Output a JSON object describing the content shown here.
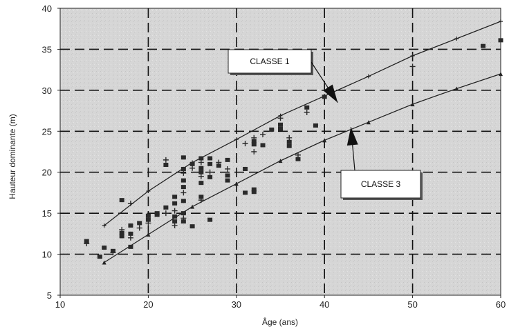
{
  "chart_data": {
    "type": "scatter",
    "title": "",
    "xlabel": "Âge (ans)",
    "ylabel": "Hauteur dominante (m)",
    "xlim": [
      10,
      60
    ],
    "ylim": [
      5,
      40
    ],
    "x_ticks": [
      "10",
      "20",
      "30",
      "40",
      "50",
      "60"
    ],
    "y_ticks": [
      "5",
      "10",
      "15",
      "20",
      "25",
      "30",
      "35",
      "40"
    ],
    "grid": true,
    "grid_style": "dashed",
    "series": [
      {
        "kind": "points",
        "points": [
          [
            13,
            11.6
          ],
          [
            13,
            11.3
          ],
          [
            14.5,
            9.7
          ],
          [
            15,
            10.8
          ],
          [
            16,
            10.2
          ],
          [
            16,
            10.4
          ],
          [
            17,
            16.6
          ],
          [
            17,
            13.0
          ],
          [
            17,
            12.6
          ],
          [
            17,
            12.2
          ],
          [
            18,
            16.2
          ],
          [
            18,
            13.5
          ],
          [
            18,
            12.5
          ],
          [
            18,
            12.0
          ],
          [
            18,
            10.9
          ],
          [
            19,
            13.8
          ],
          [
            19,
            13.2
          ],
          [
            20,
            14.7
          ],
          [
            20,
            14.2
          ],
          [
            20,
            13.8
          ],
          [
            21,
            15.0
          ],
          [
            21,
            14.8
          ],
          [
            22,
            21.5
          ],
          [
            22,
            20.9
          ],
          [
            22,
            15.7
          ],
          [
            22,
            15.0
          ],
          [
            23,
            17.0
          ],
          [
            23,
            16.2
          ],
          [
            23,
            15.3
          ],
          [
            23,
            14.6
          ],
          [
            23,
            14.0
          ],
          [
            23,
            13.5
          ],
          [
            24,
            21.8
          ],
          [
            24,
            20.4
          ],
          [
            24,
            19.9
          ],
          [
            24,
            19.0
          ],
          [
            24,
            18.2
          ],
          [
            24,
            17.5
          ],
          [
            24,
            16.5
          ],
          [
            24,
            15.0
          ],
          [
            24,
            14.4
          ],
          [
            24,
            14.0
          ],
          [
            25,
            21.0
          ],
          [
            25,
            20.5
          ],
          [
            25,
            13.4
          ],
          [
            26,
            21.7
          ],
          [
            26,
            21.2
          ],
          [
            26,
            20.5
          ],
          [
            26,
            20.0
          ],
          [
            26,
            19.5
          ],
          [
            26,
            18.7
          ],
          [
            26,
            17.0
          ],
          [
            26,
            16.6
          ],
          [
            27,
            21.7
          ],
          [
            27,
            21.0
          ],
          [
            27,
            20.0
          ],
          [
            27,
            19.4
          ],
          [
            27,
            14.2
          ],
          [
            28,
            21.2
          ],
          [
            28,
            20.8
          ],
          [
            29,
            21.5
          ],
          [
            29,
            20.4
          ],
          [
            29,
            19.6
          ],
          [
            29,
            19.0
          ],
          [
            31,
            23.5
          ],
          [
            31,
            20.4
          ],
          [
            31,
            17.5
          ],
          [
            32,
            24.2
          ],
          [
            32,
            23.8
          ],
          [
            32,
            23.4
          ],
          [
            32,
            22.5
          ],
          [
            32,
            17.9
          ],
          [
            32,
            17.6
          ],
          [
            33,
            24.6
          ],
          [
            33,
            23.3
          ],
          [
            34,
            25.2
          ],
          [
            35,
            26.6
          ],
          [
            35,
            25.8
          ],
          [
            35,
            25.3
          ],
          [
            36,
            24.2
          ],
          [
            36,
            23.7
          ],
          [
            36,
            23.2
          ],
          [
            37,
            22.1
          ],
          [
            37,
            21.6
          ],
          [
            38,
            27.9
          ],
          [
            38,
            27.3
          ],
          [
            39,
            25.7
          ],
          [
            40,
            29.2
          ],
          [
            50,
            32.9
          ],
          [
            58,
            35.4
          ],
          [
            60,
            36.1
          ]
        ]
      },
      {
        "kind": "curve",
        "name": "CLASSE 1",
        "points": [
          [
            15,
            13.5
          ],
          [
            20,
            17.7
          ],
          [
            25,
            21.2
          ],
          [
            30,
            24.0
          ],
          [
            35,
            26.9
          ],
          [
            40,
            29.3
          ],
          [
            45,
            31.7
          ],
          [
            50,
            34.2
          ],
          [
            55,
            36.3
          ],
          [
            60,
            38.4
          ]
        ]
      },
      {
        "kind": "curve",
        "name": "CLASSE 3",
        "points": [
          [
            15,
            9.0
          ],
          [
            20,
            12.4
          ],
          [
            25,
            15.8
          ],
          [
            30,
            18.6
          ],
          [
            35,
            21.4
          ],
          [
            40,
            23.9
          ],
          [
            45,
            26.1
          ],
          [
            50,
            28.3
          ],
          [
            55,
            30.2
          ],
          [
            60,
            32.0
          ]
        ]
      }
    ],
    "annotations": [
      {
        "label": "CLASSE 1",
        "arrow_tip": [
          41.5,
          28.5
        ]
      },
      {
        "label": "CLASSE 3",
        "arrow_tip": [
          43,
          25.5
        ]
      }
    ],
    "colors": {
      "background": "#d6d6d6",
      "grid": "#111111",
      "marks": "#2a2a2a"
    }
  }
}
